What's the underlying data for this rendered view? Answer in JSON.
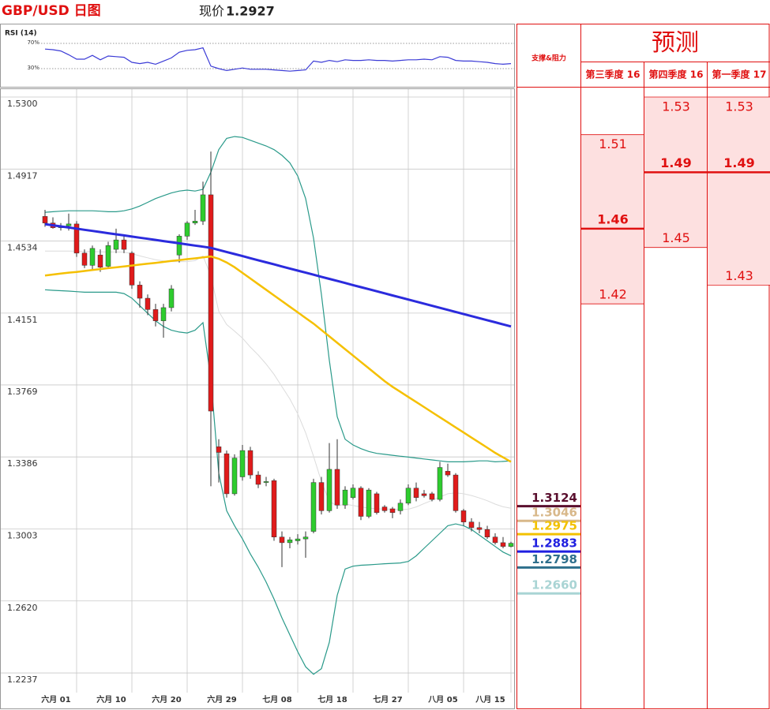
{
  "header": {
    "title": "GBP/USD 日图",
    "price_label": "现价",
    "price": 1.2927
  },
  "chart_data": [
    {
      "type": "line",
      "title": "RSI (14)",
      "color": "#3b3bd6",
      "ylim": [
        5,
        95
      ],
      "yticks": [
        {
          "value": 30,
          "label": "30%"
        },
        {
          "value": 70,
          "label": "70%"
        }
      ],
      "grid": true,
      "values": [
        61,
        60,
        58,
        52,
        45,
        45,
        51,
        44,
        50,
        49,
        48,
        40,
        38,
        40,
        37,
        42,
        47,
        56,
        59,
        60,
        63,
        34,
        30,
        27,
        29,
        31,
        29,
        29,
        29,
        28,
        27,
        26,
        27,
        28,
        42,
        40,
        43,
        41,
        44,
        43,
        43,
        44,
        43,
        43,
        42,
        43,
        44,
        44,
        45,
        44,
        49,
        48,
        43,
        42,
        42,
        41,
        40,
        38,
        37,
        38
      ]
    },
    {
      "type": "candlestick",
      "ylim": [
        1.2145,
        1.53
      ],
      "grid": true,
      "yticks": [
        {
          "value": 1.53,
          "label": "1.5300"
        },
        1.4917,
        1.4534,
        1.4151,
        1.3769,
        1.3386,
        1.3003,
        {
          "value": 1.262,
          "label": "1.2620"
        },
        1.2237
      ],
      "categories": [
        null,
        null,
        null,
        null,
        "六月 01",
        null,
        null,
        null,
        null,
        null,
        null,
        "六月 10",
        null,
        null,
        null,
        null,
        null,
        null,
        "六月 20",
        null,
        null,
        null,
        null,
        null,
        null,
        "六月 29",
        null,
        null,
        null,
        null,
        null,
        null,
        "七月 08",
        null,
        null,
        null,
        null,
        null,
        null,
        "七月 18",
        null,
        null,
        null,
        null,
        null,
        null,
        "七月 27",
        null,
        null,
        null,
        null,
        null,
        null,
        "八月 05",
        null,
        null,
        null,
        null,
        null,
        "八月 15"
      ],
      "up_color": "#2ecc2e",
      "down_color": "#e01b1b",
      "open": [
        1.4665,
        1.463,
        1.4605,
        1.4615,
        1.4625,
        1.447,
        1.4405,
        1.446,
        1.44,
        1.449,
        1.454,
        1.447,
        1.43,
        1.423,
        1.417,
        1.411,
        1.418,
        1.446,
        1.456,
        1.463,
        1.464,
        1.478,
        1.344,
        1.3403,
        1.319,
        1.328,
        1.342,
        1.329,
        1.325,
        1.326,
        1.296,
        1.293,
        1.294,
        1.295,
        1.299,
        1.325,
        1.31,
        1.332,
        1.313,
        1.317,
        1.322,
        1.307,
        1.319,
        1.312,
        1.311,
        1.31,
        1.314,
        1.322,
        1.319,
        1.319,
        1.316,
        1.331,
        1.329,
        1.31,
        1.304,
        1.301,
        1.3,
        1.296,
        1.293,
        1.291
      ],
      "high": [
        1.47,
        1.466,
        1.463,
        1.468,
        1.464,
        1.449,
        1.451,
        1.449,
        1.453,
        1.46,
        1.456,
        1.448,
        1.432,
        1.425,
        1.42,
        1.42,
        1.43,
        1.457,
        1.464,
        1.47,
        1.485,
        1.501,
        1.348,
        1.342,
        1.34,
        1.345,
        1.344,
        1.331,
        1.328,
        1.327,
        1.299,
        1.296,
        1.2975,
        1.299,
        1.327,
        1.328,
        1.346,
        1.348,
        1.323,
        1.324,
        1.323,
        1.322,
        1.32,
        1.313,
        1.312,
        1.316,
        1.324,
        1.325,
        1.321,
        1.32,
        1.336,
        1.335,
        1.33,
        1.311,
        1.306,
        1.304,
        1.302,
        1.298,
        1.296,
        1.2935
      ],
      "low": [
        1.461,
        1.46,
        1.459,
        1.459,
        1.445,
        1.439,
        1.438,
        1.437,
        1.439,
        1.447,
        1.447,
        1.428,
        1.418,
        1.414,
        1.408,
        1.402,
        1.416,
        1.442,
        1.454,
        1.462,
        1.462,
        1.323,
        1.325,
        1.317,
        1.318,
        1.326,
        1.327,
        1.322,
        1.323,
        1.294,
        1.28,
        1.29,
        1.292,
        1.285,
        1.298,
        1.308,
        1.309,
        1.311,
        1.311,
        1.316,
        1.305,
        1.306,
        1.308,
        1.309,
        1.306,
        1.308,
        1.313,
        1.315,
        1.317,
        1.315,
        1.315,
        1.328,
        1.309,
        1.302,
        1.299,
        1.298,
        1.295,
        1.292,
        1.29,
        1.2905
      ],
      "close": [
        1.463,
        1.4605,
        1.4615,
        1.4625,
        1.447,
        1.4405,
        1.4495,
        1.4395,
        1.451,
        1.454,
        1.449,
        1.43,
        1.423,
        1.417,
        1.411,
        1.418,
        1.428,
        1.456,
        1.463,
        1.464,
        1.478,
        1.363,
        1.341,
        1.319,
        1.338,
        1.342,
        1.329,
        1.324,
        1.3255,
        1.296,
        1.293,
        1.2945,
        1.295,
        1.296,
        1.325,
        1.31,
        1.332,
        1.313,
        1.321,
        1.322,
        1.307,
        1.321,
        1.309,
        1.31,
        1.309,
        1.314,
        1.322,
        1.317,
        1.318,
        1.316,
        1.333,
        1.329,
        1.31,
        1.304,
        1.301,
        1.3,
        1.296,
        1.293,
        1.291,
        1.2927
      ],
      "overlays": [
        {
          "color": "#dcdcdc",
          "width": 1,
          "values": [
            1.4481,
            1.4481,
            1.4481,
            1.4481,
            1.448,
            1.4478,
            1.4478,
            1.4477,
            1.4476,
            1.4476,
            1.4475,
            1.4467,
            1.4455,
            1.4445,
            1.4435,
            1.4428,
            1.4425,
            1.4425,
            1.4425,
            1.443,
            1.4455,
            1.435,
            1.416,
            1.409,
            1.4055,
            1.4018,
            1.397,
            1.3928,
            1.388,
            1.3825,
            1.376,
            1.3695,
            1.3615,
            1.3515,
            1.339,
            1.3255,
            1.315,
            1.3125,
            1.3135,
            1.3128,
            1.312,
            1.3114,
            1.311,
            1.3109,
            1.3108,
            1.3106,
            1.3108,
            1.312,
            1.3138,
            1.3155,
            1.3173,
            1.319,
            1.3195,
            1.319,
            1.3181,
            1.3168,
            1.3153,
            1.3135,
            1.3121,
            1.3113
          ]
        },
        {
          "color": "#2a9a8a",
          "width": 1.2,
          "values": [
            1.4687,
            1.469,
            1.4693,
            1.4695,
            1.4695,
            1.4695,
            1.4695,
            1.4693,
            1.469,
            1.469,
            1.4695,
            1.4705,
            1.472,
            1.474,
            1.476,
            1.4775,
            1.479,
            1.48,
            1.4805,
            1.48,
            1.4809,
            1.49,
            1.502,
            1.508,
            1.509,
            1.5085,
            1.507,
            1.5055,
            1.504,
            1.502,
            1.499,
            1.495,
            1.488,
            1.476,
            1.455,
            1.425,
            1.39,
            1.36,
            1.348,
            1.345,
            1.343,
            1.3415,
            1.3405,
            1.34,
            1.3395,
            1.339,
            1.3385,
            1.338,
            1.3375,
            1.337,
            1.3365,
            1.336,
            1.336,
            1.336,
            1.3362,
            1.3365,
            1.3365,
            1.336,
            1.3362,
            1.3365
          ]
        },
        {
          "color": "#2a9a8a",
          "width": 1.2,
          "values": [
            1.4275,
            1.4272,
            1.427,
            1.4268,
            1.4265,
            1.4262,
            1.4262,
            1.4262,
            1.4262,
            1.4262,
            1.4255,
            1.423,
            1.419,
            1.415,
            1.411,
            1.408,
            1.406,
            1.405,
            1.4045,
            1.406,
            1.41,
            1.38,
            1.33,
            1.31,
            1.302,
            1.295,
            1.287,
            1.28,
            1.272,
            1.263,
            1.253,
            1.244,
            1.235,
            1.227,
            1.223,
            1.226,
            1.24,
            1.265,
            1.279,
            1.2805,
            1.281,
            1.2812,
            1.2815,
            1.2818,
            1.282,
            1.2822,
            1.283,
            1.286,
            1.29,
            1.294,
            1.298,
            1.302,
            1.303,
            1.302,
            1.3,
            1.297,
            1.294,
            1.291,
            1.288,
            1.286
          ]
        },
        {
          "color": "#f5c000",
          "width": 2.5,
          "values": [
            1.4351,
            1.4356,
            1.4361,
            1.4366,
            1.437,
            1.4375,
            1.438,
            1.4385,
            1.439,
            1.4394,
            1.4399,
            1.4404,
            1.4409,
            1.4414,
            1.4418,
            1.4423,
            1.4428,
            1.4433,
            1.4438,
            1.4442,
            1.4447,
            1.4452,
            1.444,
            1.442,
            1.4395,
            1.4365,
            1.4335,
            1.4305,
            1.4275,
            1.4245,
            1.4215,
            1.4185,
            1.4155,
            1.4125,
            1.4095,
            1.4061,
            1.4027,
            1.3993,
            1.3959,
            1.3925,
            1.3891,
            1.3857,
            1.3823,
            1.3789,
            1.3759,
            1.3732,
            1.3705,
            1.3678,
            1.3651,
            1.3624,
            1.3597,
            1.357,
            1.3543,
            1.3516,
            1.3489,
            1.3462,
            1.3435,
            1.3408,
            1.3384,
            1.336
          ]
        },
        {
          "color": "#2b2bdd",
          "width": 3,
          "values": [
            1.4624,
            1.4618,
            1.4612,
            1.4606,
            1.46,
            1.4594,
            1.4588,
            1.4582,
            1.4576,
            1.457,
            1.4564,
            1.4558,
            1.4552,
            1.4546,
            1.454,
            1.4534,
            1.4528,
            1.4522,
            1.4516,
            1.451,
            1.4504,
            1.4498,
            1.4487,
            1.4476,
            1.4465,
            1.4454,
            1.4443,
            1.4432,
            1.4421,
            1.441,
            1.4399,
            1.4388,
            1.4377,
            1.4366,
            1.4355,
            1.4344,
            1.4333,
            1.4322,
            1.4311,
            1.43,
            1.4289,
            1.4278,
            1.4267,
            1.4256,
            1.4245,
            1.4234,
            1.4223,
            1.4212,
            1.4201,
            1.419,
            1.4179,
            1.4168,
            1.4157,
            1.4146,
            1.4135,
            1.4124,
            1.4113,
            1.4102,
            1.4091,
            1.408
          ]
        }
      ],
      "support_resistance": {
        "title": "支撑&阻力",
        "levels": [
          {
            "value": 1.3124,
            "color": "#5a0f2e"
          },
          {
            "value": 1.3046,
            "color": "#d8b88a"
          },
          {
            "value": 1.2975,
            "color": "#f2c100"
          },
          {
            "value": 1.2883,
            "color": "#1f1fe0"
          },
          {
            "value": 1.2798,
            "color": "#2e6f8c"
          },
          {
            "value": 1.266,
            "label": "1.2660",
            "color": "#a9d4d4"
          }
        ]
      }
    }
  ],
  "forecast": {
    "title": "预测",
    "columns": [
      {
        "label": "第三季度 16",
        "high": 1.51,
        "mid": 1.46,
        "low": 1.42
      },
      {
        "label": "第四季度 16",
        "high": 1.53,
        "mid": 1.49,
        "low": 1.45
      },
      {
        "label": "第一季度 17",
        "high": 1.53,
        "mid": 1.49,
        "low": 1.43
      }
    ]
  }
}
